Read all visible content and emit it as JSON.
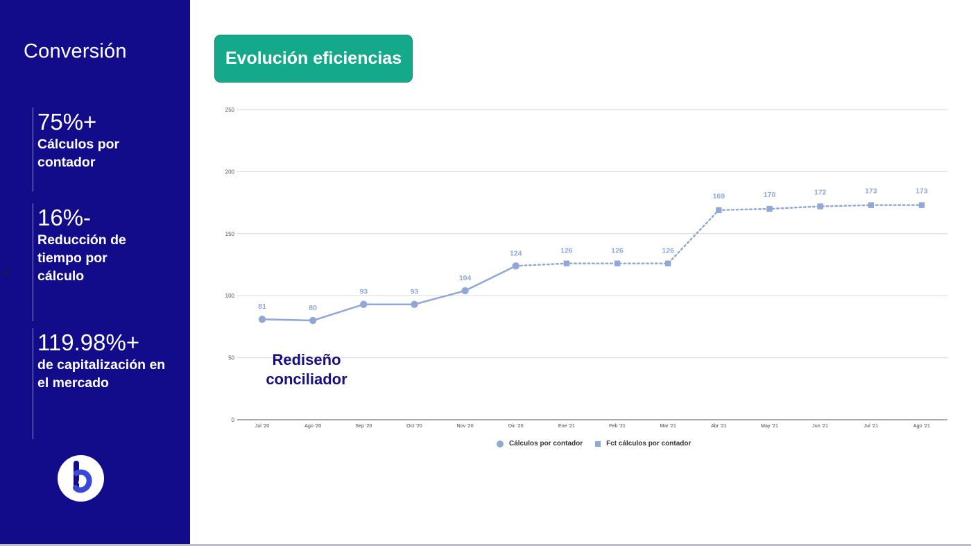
{
  "sidebar": {
    "title": "Conversión",
    "stray_mark": "tE",
    "kpis": [
      {
        "value": "75%+",
        "label": "Cálculos por\ncontador"
      },
      {
        "value": "16%-",
        "label": "Reducción de\ntiempo por\ncálculo"
      },
      {
        "value": "119.98%+",
        "label": "de capitalización en\nel mercado"
      }
    ]
  },
  "title_box": {
    "text": "Evolución eficiencias"
  },
  "annotation": {
    "text": "Rediseño\nconciliador"
  },
  "legend": {
    "series_1": "Cálculos por contador",
    "series_2": "Fct cálculos por contador"
  },
  "colors": {
    "sidebar_bg": "#130c8a",
    "title_box_bg": "#14a98b",
    "series": "#8fa8d8",
    "data_label": "#8fa8d8",
    "annotation": "#160f7d"
  },
  "icons": {
    "logo": "b-logo-icon"
  },
  "chart_data": {
    "type": "line",
    "categories": [
      "Jul '20",
      "Ago '20",
      "Sep '20",
      "Oct '20",
      "Nov '20",
      "Dic '20",
      "Ene '21",
      "Feb '21",
      "Mar '21",
      "Abr '21",
      "May '21",
      "Jun '21",
      "Jul '21",
      "Ago '21"
    ],
    "series": [
      {
        "name": "Cálculos por contador",
        "values": [
          81,
          80,
          93,
          93,
          104,
          124,
          null,
          null,
          null,
          null,
          null,
          null,
          null,
          null
        ],
        "style": "solid",
        "marker": "circle"
      },
      {
        "name": "Fct cálculos por contador",
        "values": [
          null,
          null,
          null,
          null,
          null,
          124,
          126,
          126,
          126,
          169,
          170,
          172,
          173,
          173
        ],
        "style": "dotted",
        "marker": "square"
      }
    ],
    "data_labels": [
      81,
      80,
      93,
      93,
      104,
      124,
      126,
      126,
      126,
      169,
      170,
      172,
      173,
      173
    ],
    "yticks": [
      0,
      50,
      100,
      150,
      200,
      250
    ],
    "ylim": [
      0,
      250
    ],
    "grid": true,
    "legend_position": "bottom",
    "title": "Evolución eficiencias",
    "xlabel": "",
    "ylabel": ""
  }
}
